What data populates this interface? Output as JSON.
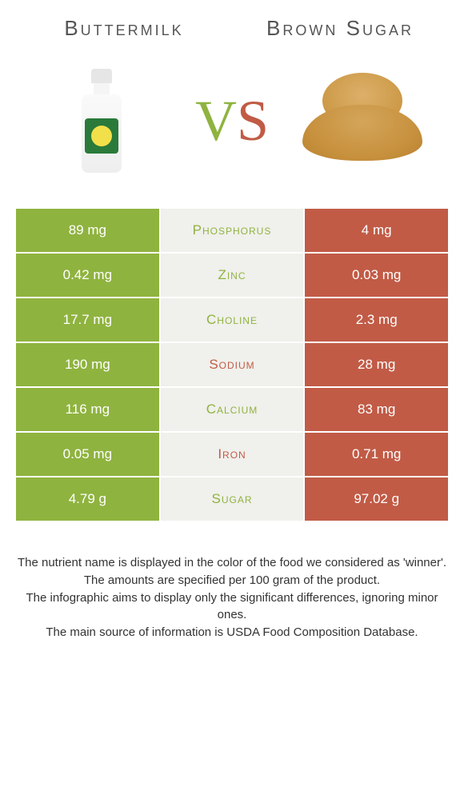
{
  "header": {
    "left_title": "Buttermilk",
    "right_title": "Brown Sugar"
  },
  "vs": {
    "v": "V",
    "s": "S"
  },
  "colors": {
    "green": "#8fb33f",
    "red": "#c15b46",
    "mid_bg": "#f0f0ec",
    "page_bg": "#ffffff"
  },
  "rows": [
    {
      "left": "89 mg",
      "label": "Phosphorus",
      "right": "4 mg",
      "winner": "green"
    },
    {
      "left": "0.42 mg",
      "label": "Zinc",
      "right": "0.03 mg",
      "winner": "green"
    },
    {
      "left": "17.7 mg",
      "label": "Choline",
      "right": "2.3 mg",
      "winner": "green"
    },
    {
      "left": "190 mg",
      "label": "Sodium",
      "right": "28 mg",
      "winner": "red"
    },
    {
      "left": "116 mg",
      "label": "Calcium",
      "right": "83 mg",
      "winner": "green"
    },
    {
      "left": "0.05 mg",
      "label": "Iron",
      "right": "0.71 mg",
      "winner": "red"
    },
    {
      "left": "4.79 g",
      "label": "Sugar",
      "right": "97.02 g",
      "winner": "green"
    }
  ],
  "footnotes": [
    "The nutrient name is displayed in the color of the food we considered as 'winner'.",
    "The amounts are specified per 100 gram of the product.",
    "The infographic aims to display only the significant differences, ignoring minor ones.",
    "The main source of information is USDA Food Composition Database."
  ]
}
